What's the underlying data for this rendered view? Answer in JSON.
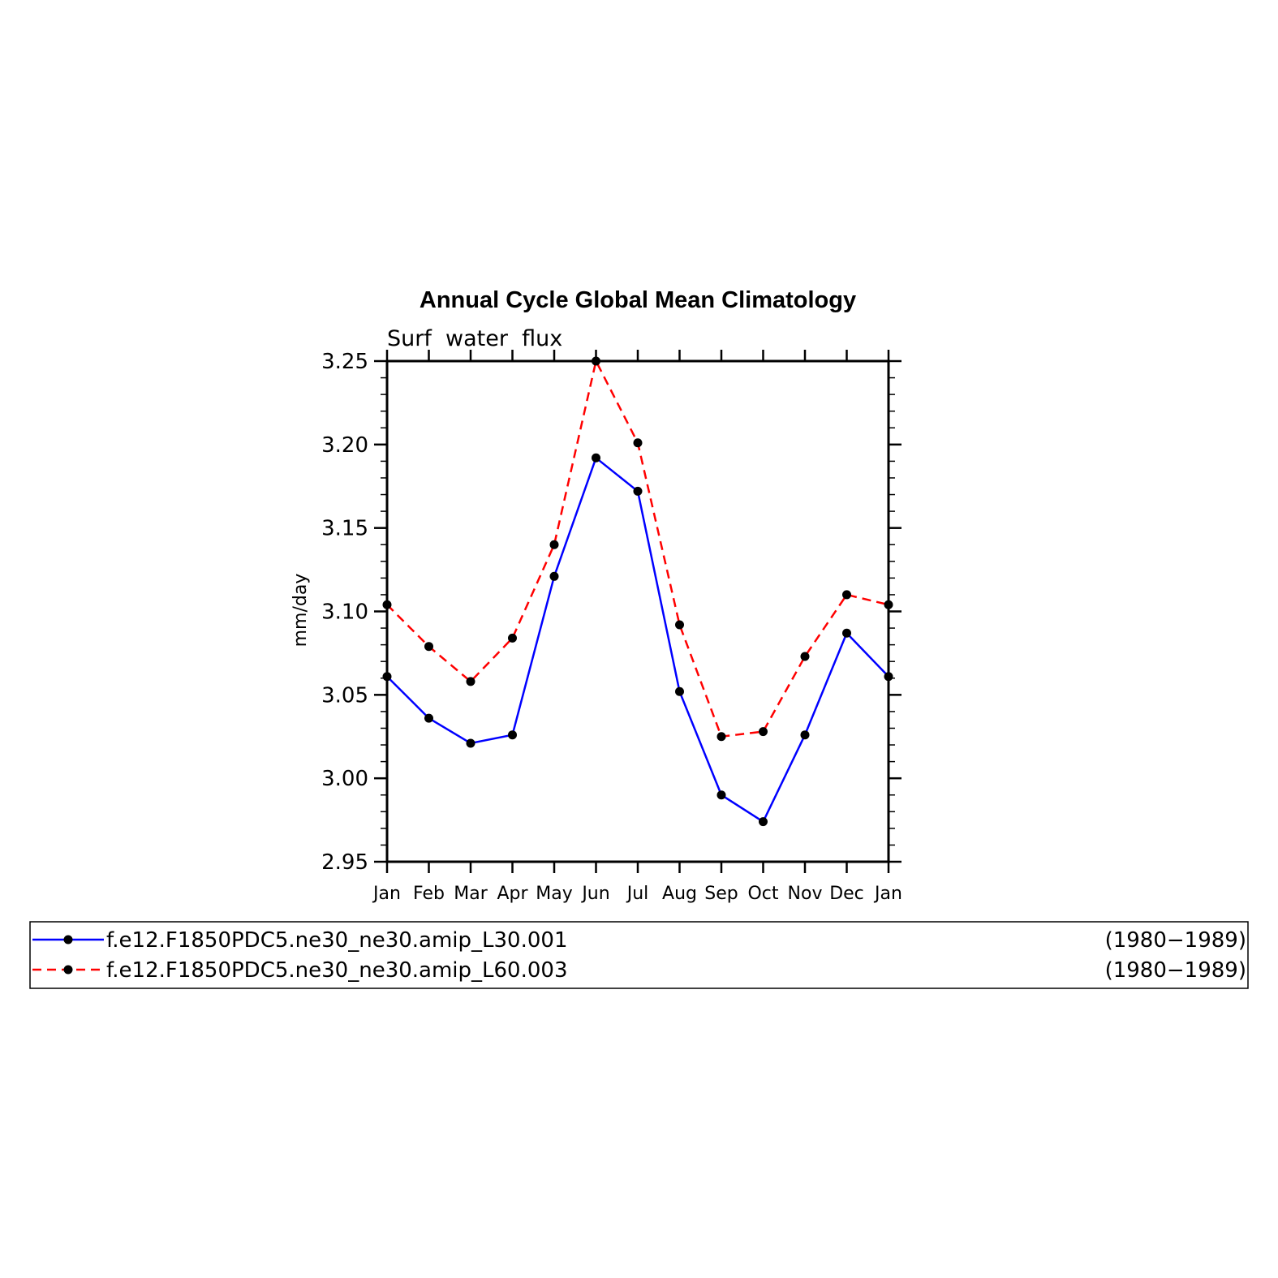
{
  "chart_data": {
    "type": "line",
    "title": "Annual Cycle Global Mean Climatology",
    "subtitle": "Surf  water  flux",
    "xlabel": "",
    "ylabel": "mm/day",
    "categories": [
      "Jan",
      "Feb",
      "Mar",
      "Apr",
      "May",
      "Jun",
      "Jul",
      "Aug",
      "Sep",
      "Oct",
      "Nov",
      "Dec",
      "Jan"
    ],
    "ylim": [
      2.95,
      3.25
    ],
    "yticks": [
      "2.95",
      "3.00",
      "3.05",
      "3.10",
      "3.15",
      "3.20",
      "3.25"
    ],
    "grid": false,
    "legend_position": "bottom",
    "series": [
      {
        "name": "f.e12.F1850PDC5.ne30_ne30.amip_L30.001",
        "period": "(1980−1989)",
        "color": "#0000ff",
        "line_style": "solid",
        "values": [
          3.061,
          3.036,
          3.021,
          3.026,
          3.121,
          3.192,
          3.172,
          3.052,
          2.99,
          2.974,
          3.026,
          3.087,
          3.061
        ]
      },
      {
        "name": "f.e12.F1850PDC5.ne30_ne30.amip_L60.003",
        "period": "(1980−1989)",
        "color": "#ff0000",
        "line_style": "dashed",
        "values": [
          3.104,
          3.079,
          3.058,
          3.084,
          3.14,
          3.25,
          3.201,
          3.092,
          3.025,
          3.028,
          3.073,
          3.11,
          3.104
        ]
      }
    ],
    "marker_color": "#000000"
  }
}
